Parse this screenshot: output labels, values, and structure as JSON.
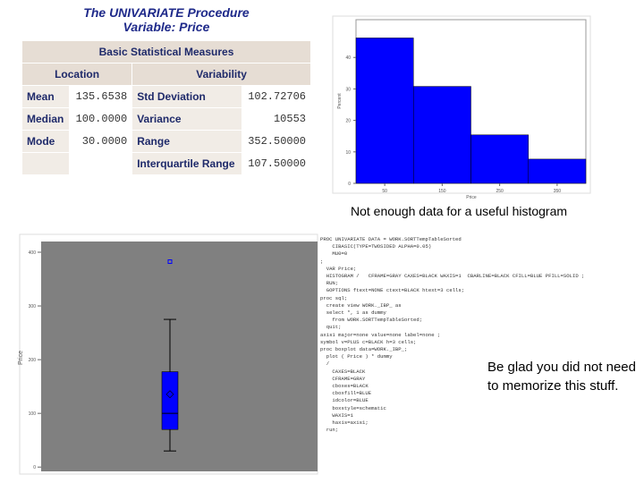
{
  "header": {
    "title": "The UNIVARIATE Procedure",
    "subtitle": "Variable: Price"
  },
  "table": {
    "caption": "Basic Statistical Measures",
    "columns": [
      "Location",
      "Variability"
    ],
    "rows": [
      [
        "Mean",
        "135.6538",
        "Std Deviation",
        "102.72706"
      ],
      [
        "Median",
        "100.0000",
        "Variance",
        "10553"
      ],
      [
        "Mode",
        "30.0000",
        "Range",
        "352.50000"
      ],
      [
        null,
        null,
        "Interquartile Range",
        "107.50000"
      ]
    ]
  },
  "captions": [
    "Not enough data for a useful histogram",
    "Be glad you did not need to memorize this stuff."
  ],
  "code": [
    "PROC UNIVARIATE DATA = WORK.SORTTempTableSorted",
    "    CIBASIC(TYPE=TWOSIDED ALPHA=0.05)",
    "    MU0=0",
    ";",
    "  VAR Price;",
    "  HISTOGRAM /   CFRAME=GRAY CAXES=BLACK WAXIS=1  CBARLINE=BLACK CFILL=BLUE PFILL=SOLID ;",
    "",
    "  RUN;",
    "  GOPTIONS ftext=NONE ctext=BLACK htext=3 cells;",
    "",
    "proc sql;",
    "  create view WORK._IBP_ as",
    "  select *, 1 as dummy",
    "    from WORK.SORTTempTableSorted;",
    "  quit;",
    "",
    "axis1 major=none value=none label=none ;",
    "symbol v=PLUS c=BLACK h=3 cells;",
    "",
    "proc boxplot data=WORK._IBP_;",
    "  plot ( Price ) * dummy",
    "  /",
    "    CAXES=BLACK",
    "    CFRAME=GRAY",
    "    cboxes=BLACK",
    "    cboxfill=BLUE",
    "    idcolor=BLUE",
    "    boxstyle=schematic",
    "    WAXIS=1",
    "    haxis=axis1;",
    "  run;"
  ],
  "chart_data": [
    {
      "type": "histogram",
      "x_label": "Price",
      "y_label": "Percent",
      "bins": [
        0,
        100,
        200,
        300,
        400
      ],
      "values": [
        46.2,
        30.8,
        15.4,
        7.7
      ],
      "color": "#0000ff",
      "xlim": [
        0,
        400
      ],
      "xticks": [
        50,
        150,
        250,
        350
      ],
      "ylim": [
        0,
        52
      ],
      "yticks": [
        0,
        10,
        20,
        30,
        40
      ]
    },
    {
      "type": "box",
      "y_label": "Price",
      "whisker_low": 30,
      "q1": 70,
      "median": 100,
      "q3": 177.5,
      "whisker_high": 275,
      "mean": 135.65,
      "outliers": [
        382.5
      ],
      "color": "#0000ff",
      "ylim": [
        -8,
        420
      ],
      "yticks": [
        0,
        100,
        200,
        300,
        400
      ]
    }
  ]
}
